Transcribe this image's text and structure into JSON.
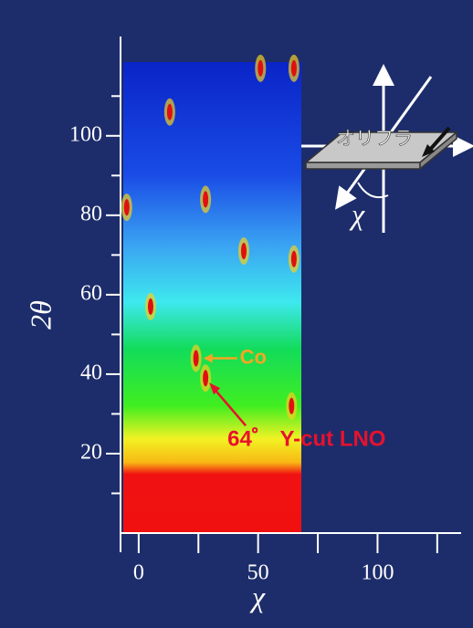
{
  "chart_data": {
    "type": "scatter",
    "x_label": "χ",
    "y_label": "2θ",
    "xlim": [
      -7.6,
      135
    ],
    "ylim": [
      0,
      125
    ],
    "xticks": [
      0,
      50,
      100
    ],
    "xminorticks": [
      25,
      75,
      125
    ],
    "yticks": [
      20,
      40,
      60,
      80,
      100
    ],
    "yminorticks": [
      10,
      30,
      50,
      70,
      90,
      110
    ],
    "x": [
      13,
      -5,
      28,
      5,
      44,
      65,
      28,
      64,
      51,
      65,
      24
    ],
    "values": [
      106,
      82,
      84,
      57,
      71,
      69,
      39,
      32,
      117,
      117,
      44
    ],
    "color": "#e01010",
    "annotations": [
      {
        "text": "Co",
        "x": 24,
        "y": 44,
        "color": "#f5a623"
      },
      {
        "text": "64゜ Y-cut LNO",
        "x": 28,
        "y": 39,
        "color": "#e8112d"
      }
    ],
    "inset": {
      "label": "オリフラ",
      "axis_label": "χ"
    }
  }
}
